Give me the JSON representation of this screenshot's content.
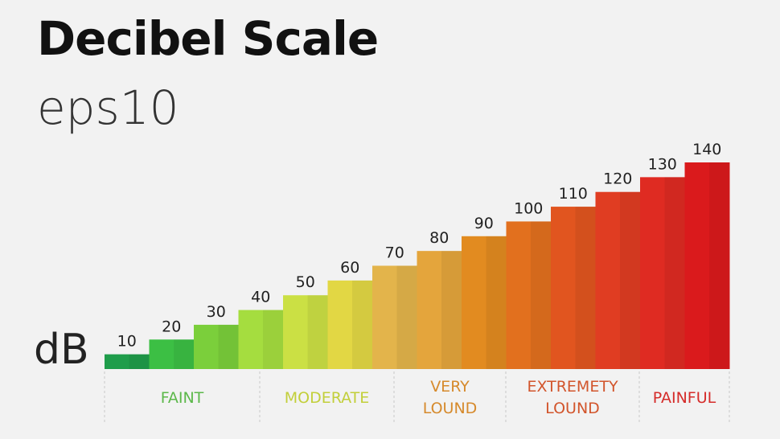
{
  "chart_data": {
    "type": "bar",
    "title": "Decibel Scale",
    "subtitle": "eps10",
    "ylabel": "dB",
    "values": [
      10,
      20,
      30,
      40,
      50,
      60,
      70,
      80,
      90,
      100,
      110,
      120,
      130,
      140
    ],
    "colors": [
      "#1f9d4b",
      "#3cbf44",
      "#7bcf3b",
      "#a5dd3f",
      "#cbe044",
      "#e2d744",
      "#e3b44b",
      "#e4a53c",
      "#e28b20",
      "#e2701e",
      "#e1551f",
      "#e03d22",
      "#df2b22",
      "#da1a1c"
    ],
    "ylim": [
      0,
      140
    ],
    "groups": [
      {
        "label": "FAINT",
        "color": "#5cb84a"
      },
      {
        "label": "MODERATE",
        "color": "#c2cf3a"
      },
      {
        "label": "VERY LOUND",
        "color": "#d68a2c"
      },
      {
        "label": "EXTREMETY LOUND",
        "color": "#d2552c"
      },
      {
        "label": "PAINFUL",
        "color": "#d52c2a"
      }
    ]
  }
}
